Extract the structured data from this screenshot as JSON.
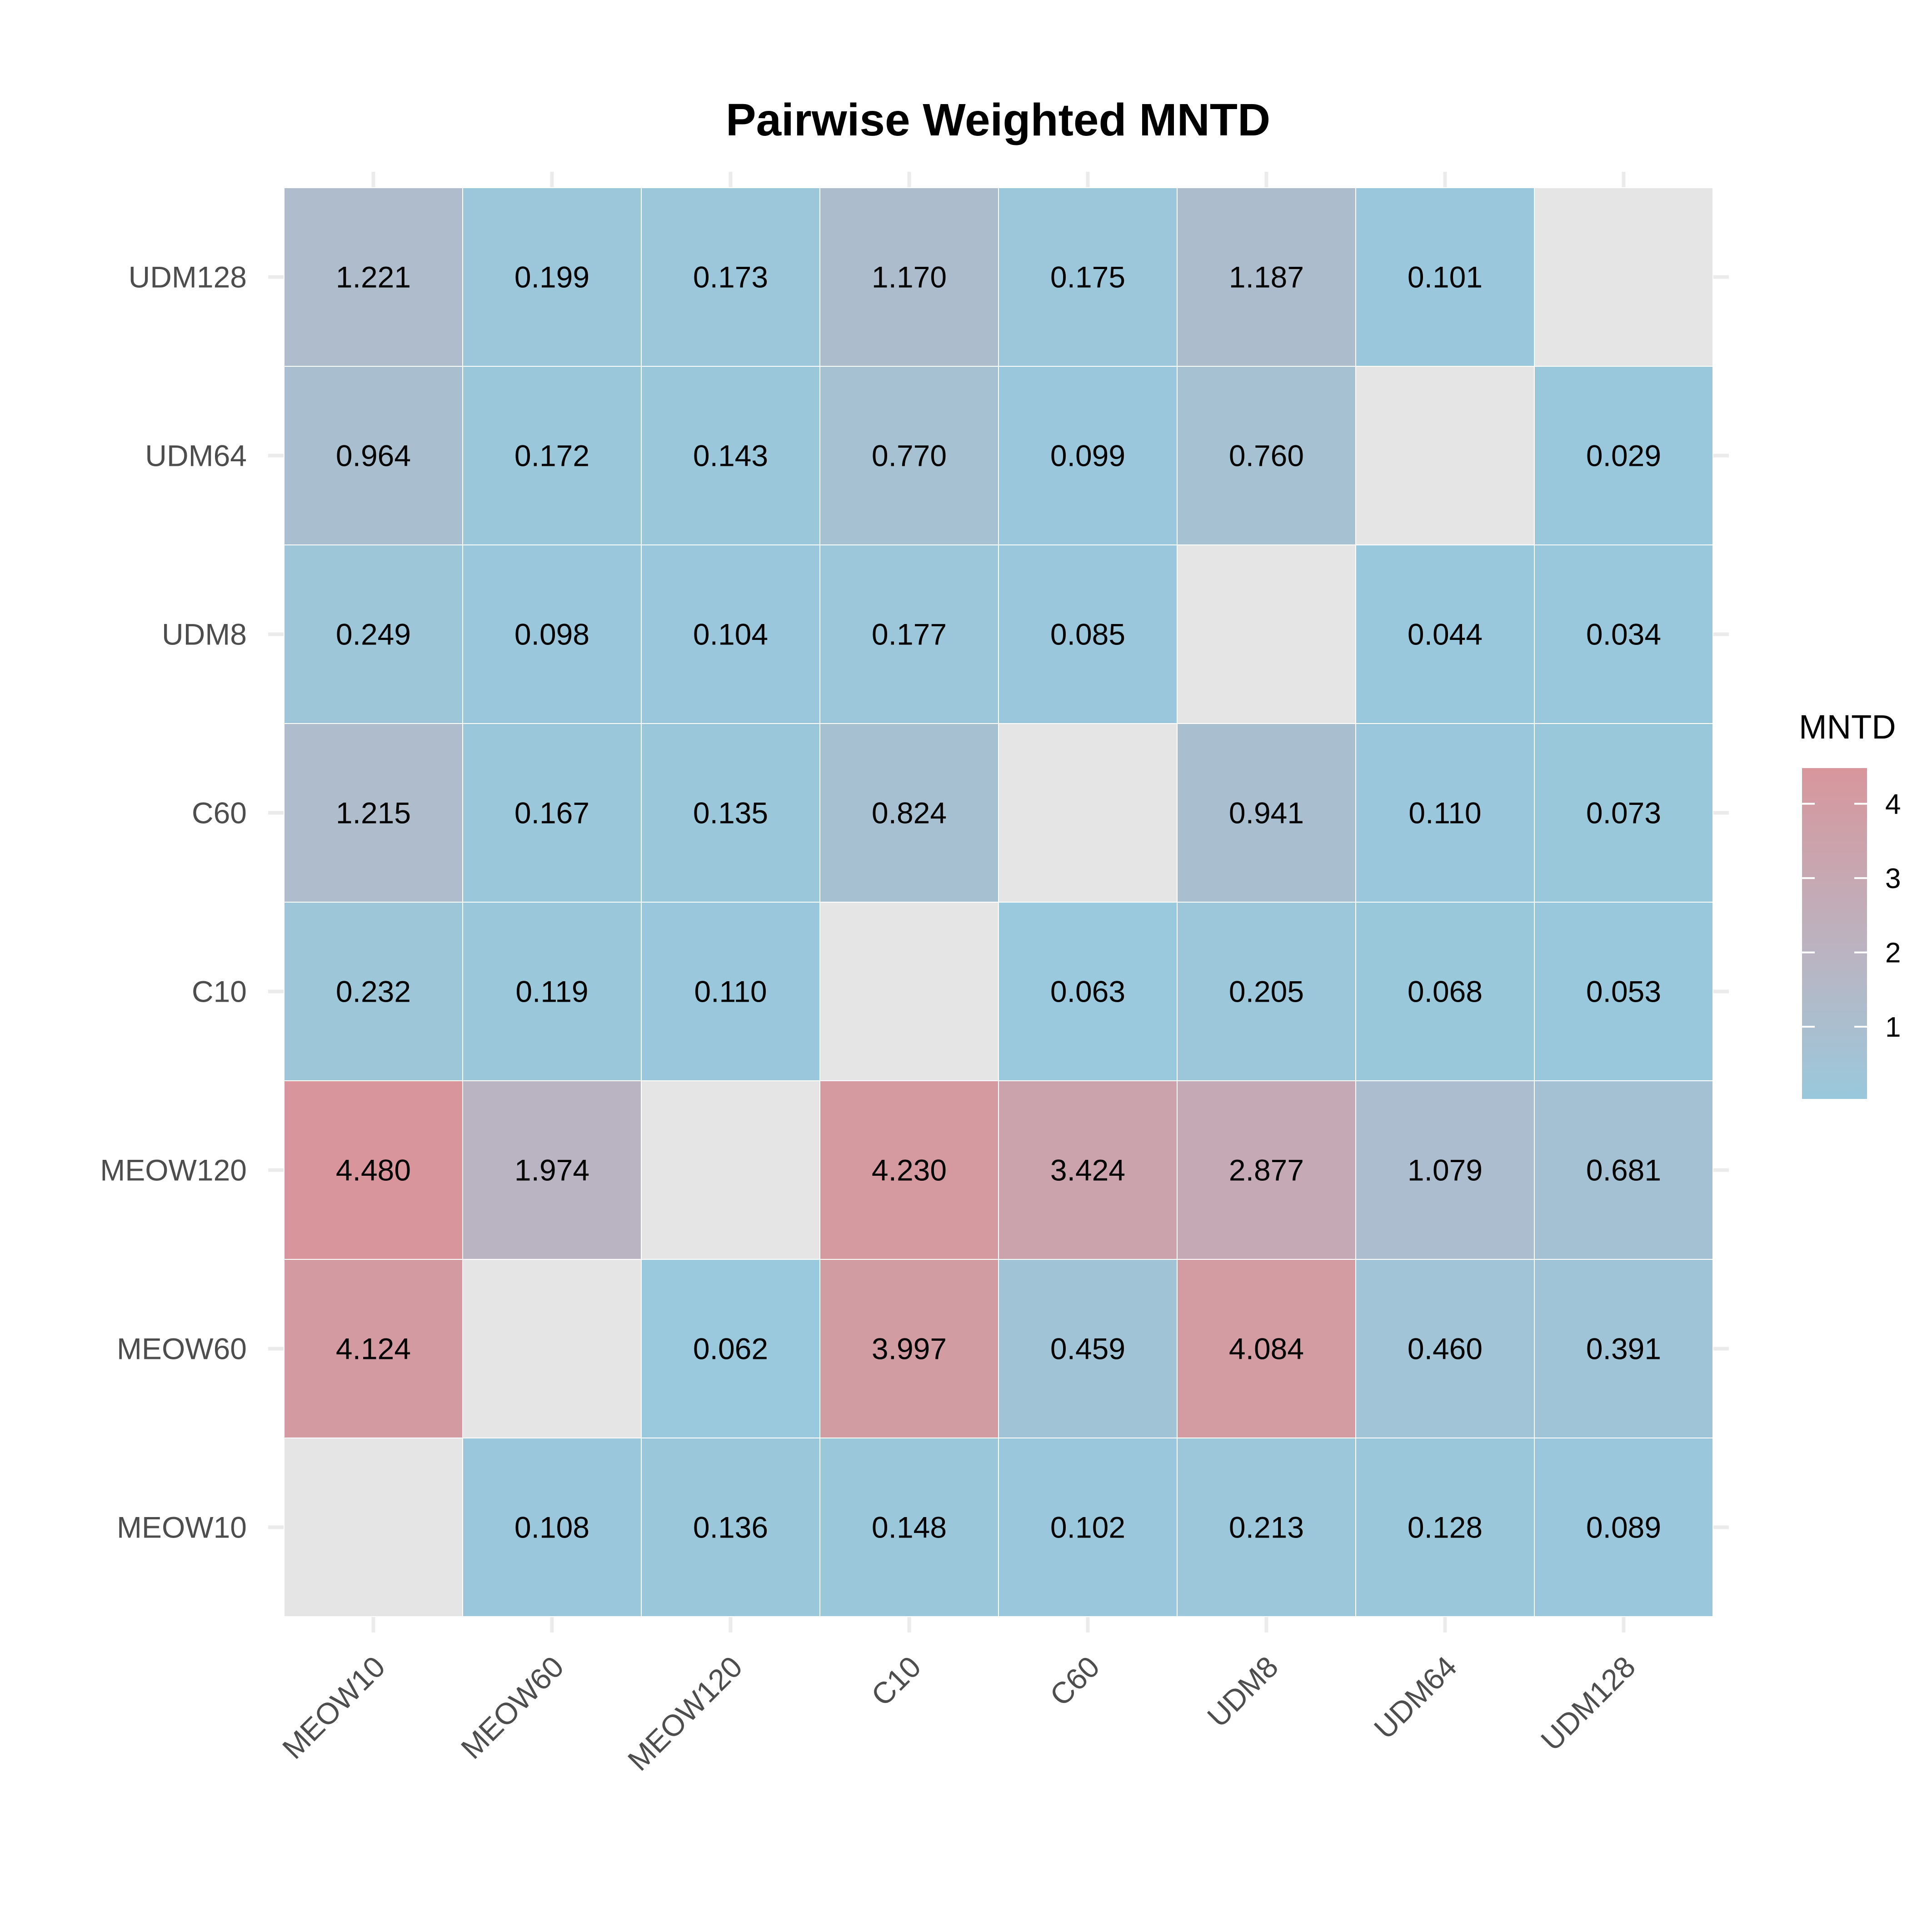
{
  "chart_data": {
    "type": "heatmap",
    "title": "Pairwise Weighted MNTD",
    "xlabel": "",
    "ylabel": "",
    "x_categories": [
      "MEOW10",
      "MEOW60",
      "MEOW120",
      "C10",
      "C60",
      "UDM8",
      "UDM64",
      "UDM128"
    ],
    "y_categories": [
      "MEOW10",
      "MEOW60",
      "MEOW120",
      "C10",
      "C60",
      "UDM8",
      "UDM64",
      "UDM128"
    ],
    "values": [
      [
        null,
        0.108,
        0.136,
        0.148,
        0.102,
        0.213,
        0.128,
        0.089
      ],
      [
        4.124,
        null,
        0.062,
        3.997,
        0.459,
        4.084,
        0.46,
        0.391
      ],
      [
        4.48,
        1.974,
        null,
        4.23,
        3.424,
        2.877,
        1.079,
        0.681
      ],
      [
        0.232,
        0.119,
        0.11,
        null,
        0.063,
        0.205,
        0.068,
        0.053
      ],
      [
        1.215,
        0.167,
        0.135,
        0.824,
        null,
        0.941,
        0.11,
        0.073
      ],
      [
        0.249,
        0.098,
        0.104,
        0.177,
        0.085,
        null,
        0.044,
        0.034
      ],
      [
        0.964,
        0.172,
        0.143,
        0.77,
        0.099,
        0.76,
        null,
        0.029
      ],
      [
        1.221,
        0.199,
        0.173,
        1.17,
        0.175,
        1.187,
        0.101,
        null
      ]
    ],
    "value_labels": [
      [
        "",
        "0.108",
        "0.136",
        "0.148",
        "0.102",
        "0.213",
        "0.128",
        "0.089"
      ],
      [
        "4.124",
        "",
        "0.062",
        "3.997",
        "0.459",
        "4.084",
        "0.460",
        "0.391"
      ],
      [
        "4.480",
        "1.974",
        "",
        "4.230",
        "3.424",
        "2.877",
        "1.079",
        "0.681"
      ],
      [
        "0.232",
        "0.119",
        "0.110",
        "",
        "0.063",
        "0.205",
        "0.068",
        "0.053"
      ],
      [
        "1.215",
        "0.167",
        "0.135",
        "0.824",
        "",
        "0.941",
        "0.110",
        "0.073"
      ],
      [
        "0.249",
        "0.098",
        "0.104",
        "0.177",
        "0.085",
        "",
        "0.044",
        "0.034"
      ],
      [
        "0.964",
        "0.172",
        "0.143",
        "0.770",
        "0.099",
        "0.760",
        "",
        "0.029"
      ],
      [
        "1.221",
        "0.199",
        "0.173",
        "1.170",
        "0.175",
        "1.187",
        "0.101",
        ""
      ]
    ],
    "legend": {
      "title": "MNTD",
      "placement": "right",
      "ticks": [
        1,
        2,
        3,
        4
      ],
      "tick_labels": [
        "1",
        "2",
        "3",
        "4"
      ],
      "range": [
        0.029,
        4.48
      ],
      "low_color": "#99c8dc",
      "mid_color": "#b8b6c4",
      "high_color": "#d8969c"
    },
    "na_color": "#e5e5e5",
    "grid": true,
    "x_tick_rotation": -45
  }
}
